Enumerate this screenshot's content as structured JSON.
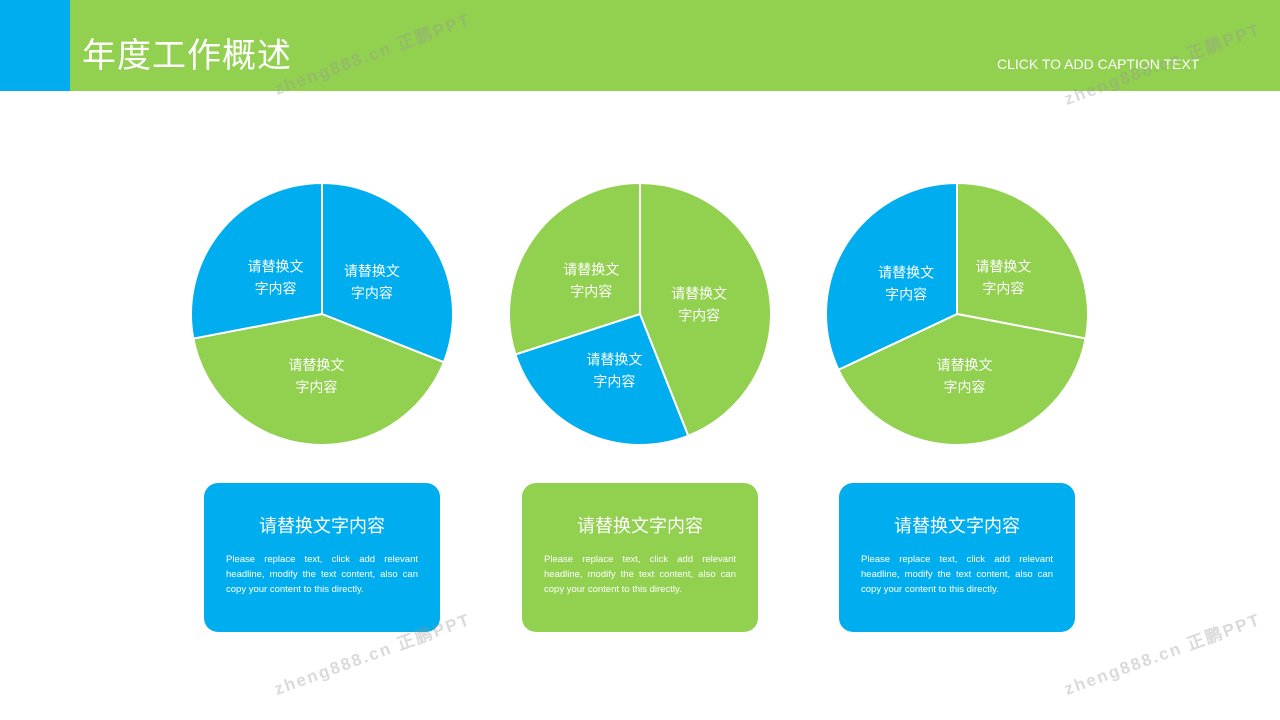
{
  "header": {
    "title": "年度工作概述",
    "caption": "CLICK TO ADD CAPTION TEXT"
  },
  "colors": {
    "blue": "#00AEEF",
    "green": "#92D050"
  },
  "watermark": "zheng888.cn 正鹏PPT",
  "chart_data": [
    {
      "type": "pie",
      "slices": [
        {
          "label": "请替换文字内容",
          "value": 31,
          "color": "#00AEEF"
        },
        {
          "label": "请替换文字内容",
          "value": 41,
          "color": "#92D050"
        },
        {
          "label": "请替换文字内容",
          "value": 28,
          "color": "#00AEEF"
        }
      ]
    },
    {
      "type": "pie",
      "slices": [
        {
          "label": "请替换文字内容",
          "value": 44,
          "color": "#92D050"
        },
        {
          "label": "请替换文字内容",
          "value": 26,
          "color": "#00AEEF"
        },
        {
          "label": "请替换文字内容",
          "value": 30,
          "color": "#92D050"
        }
      ]
    },
    {
      "type": "pie",
      "slices": [
        {
          "label": "请替换文字内容",
          "value": 28,
          "color": "#92D050"
        },
        {
          "label": "请替换文字内容",
          "value": 40,
          "color": "#92D050"
        },
        {
          "label": "请替换文字内容",
          "value": 32,
          "color": "#00AEEF"
        }
      ]
    }
  ],
  "cards": [
    {
      "title": "请替换文字内容",
      "body": "Please replace text, click add relevant headline, modify the text content, also can copy your content to this directly.",
      "color": "#00AEEF"
    },
    {
      "title": "请替换文字内容",
      "body": "Please replace text, click add relevant headline, modify the text content, also can copy your content to this directly.",
      "color": "#92D050"
    },
    {
      "title": "请替换文字内容",
      "body": "Please replace text, click add relevant headline, modify the text content, also can copy your content to this directly.",
      "color": "#00AEEF"
    }
  ]
}
